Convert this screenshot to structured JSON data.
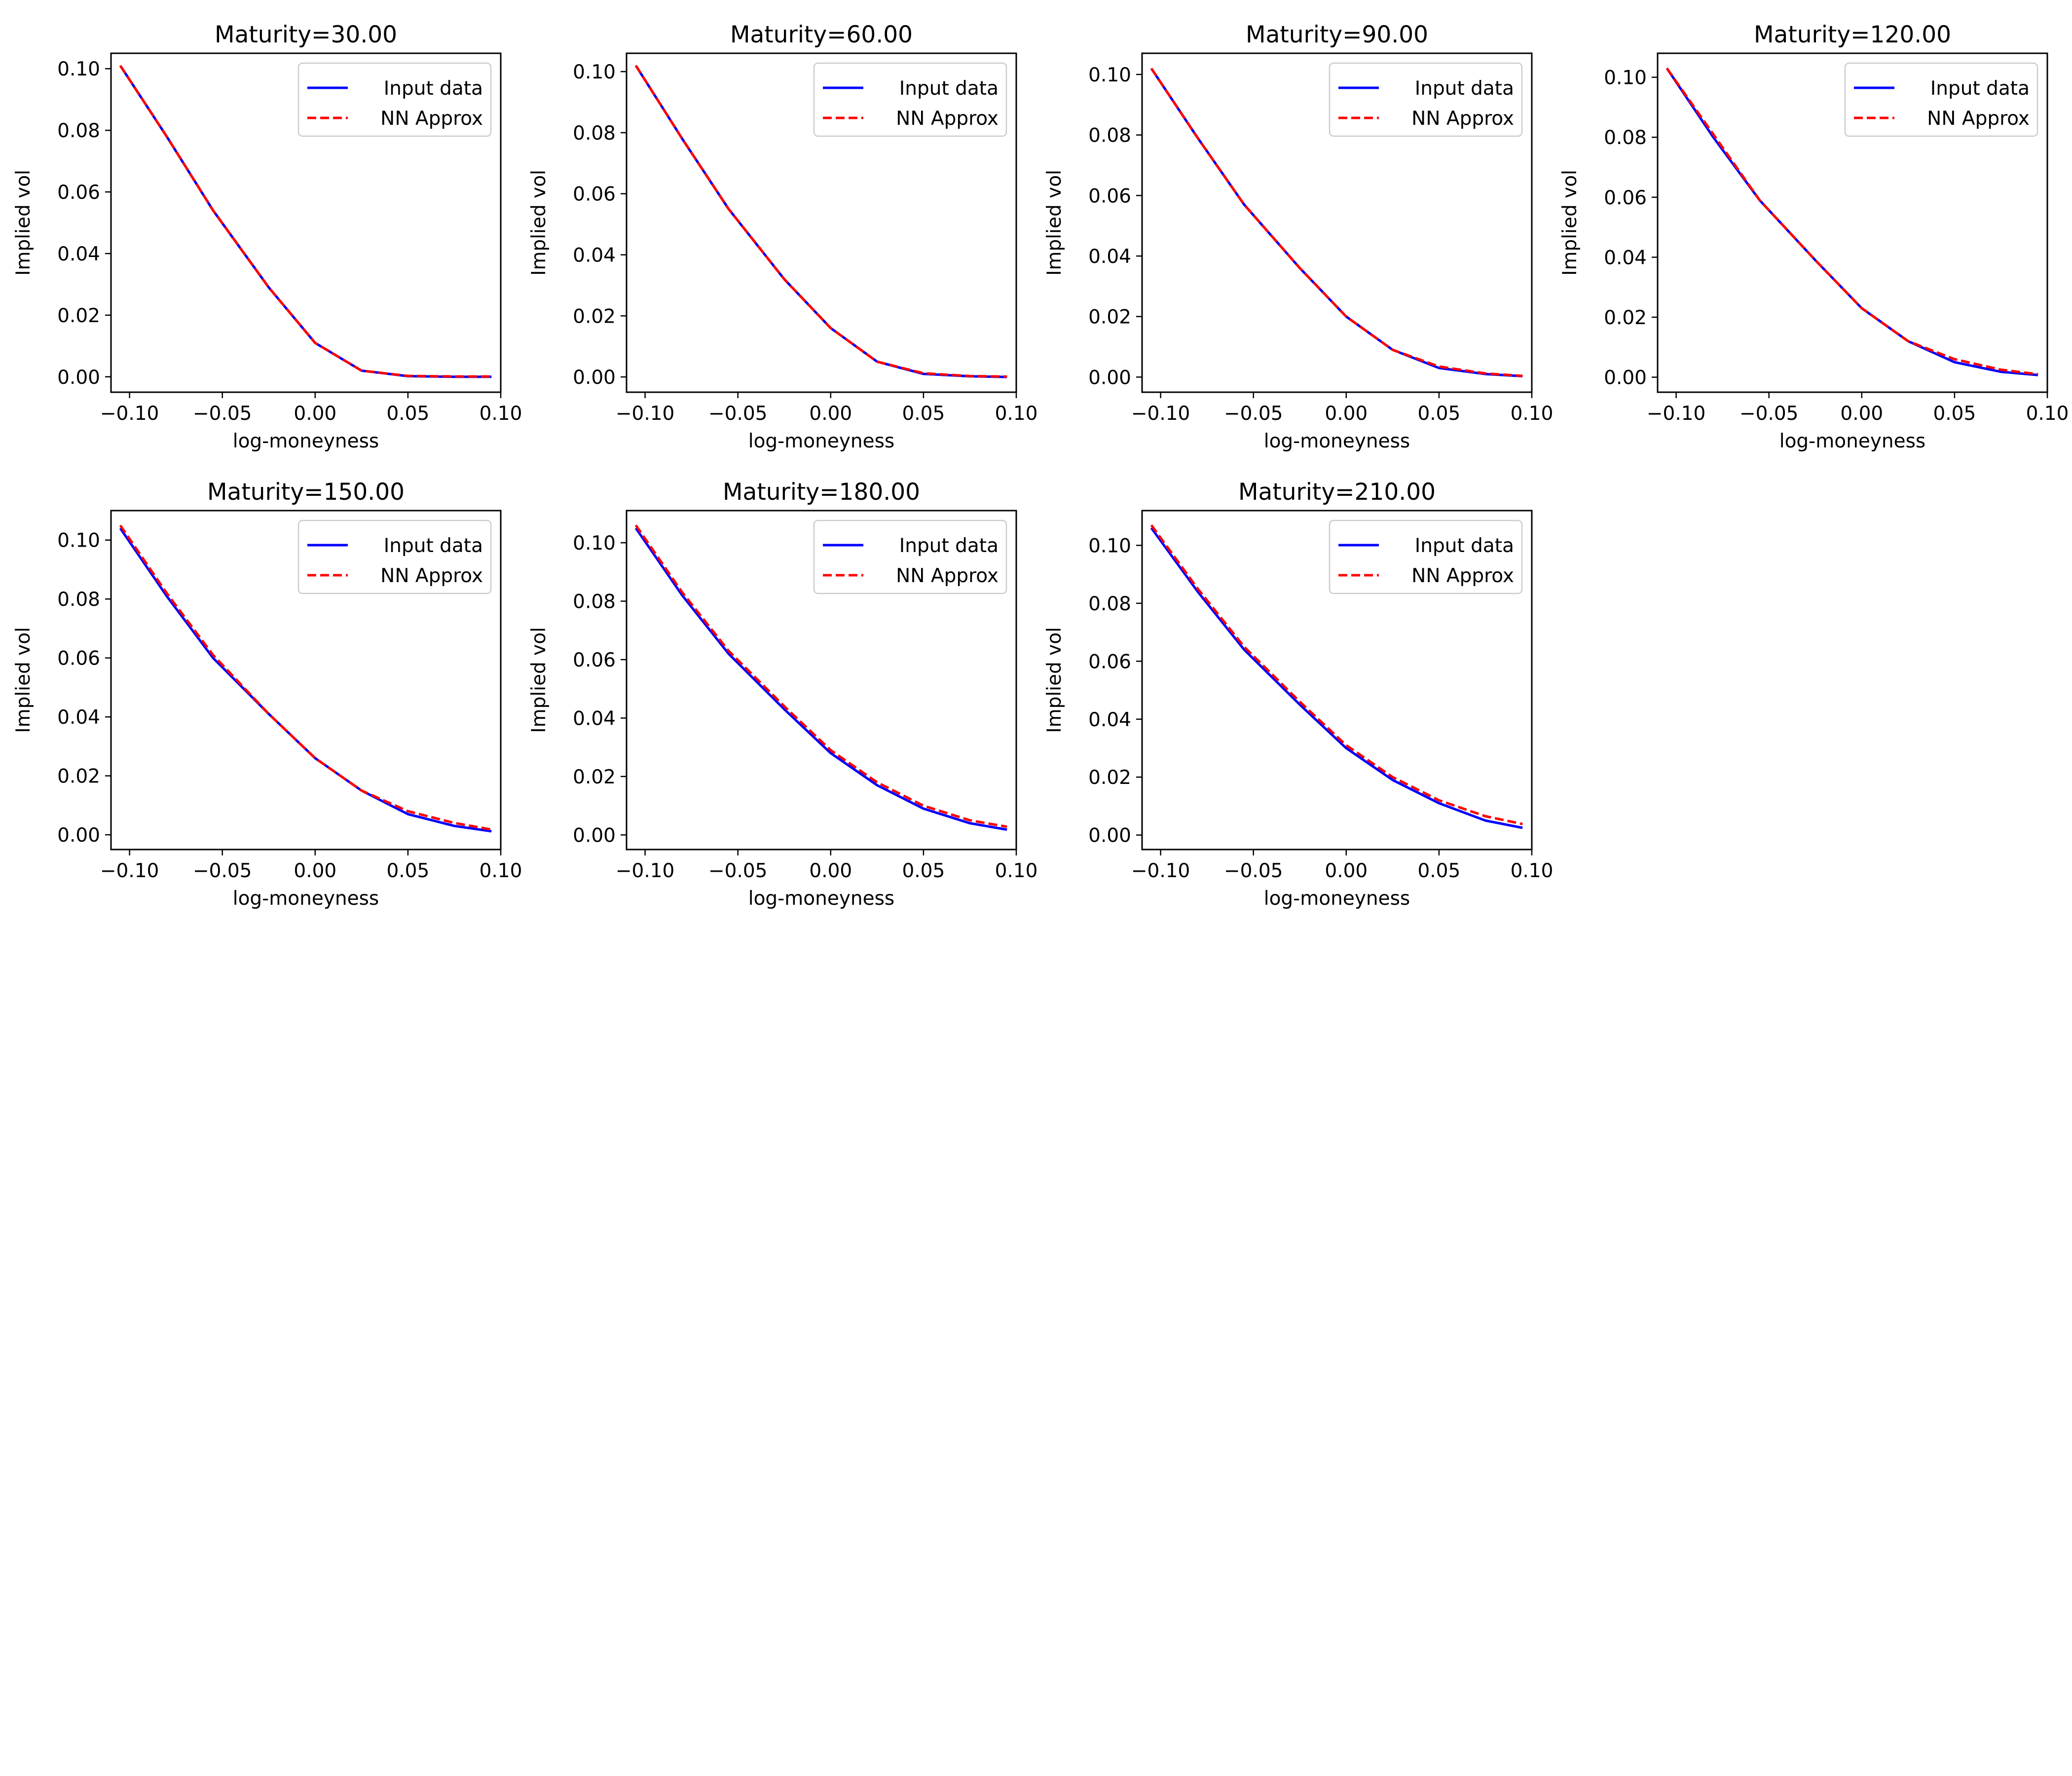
{
  "chart_data": [
    {
      "type": "line",
      "title": "Maturity=30.00",
      "xlabel": "log-moneyness",
      "ylabel": "Implied vol",
      "xlim": [
        -0.11,
        0.1
      ],
      "ylim": [
        -0.005,
        0.105
      ],
      "xticks": [
        "−0.10",
        "−0.05",
        "0.00",
        "0.05",
        "0.10"
      ],
      "yticks": [
        "0.00",
        "0.02",
        "0.04",
        "0.06",
        "0.08",
        "0.10"
      ],
      "legend": "top-right",
      "series": [
        {
          "name": "Input data",
          "color": "#0000ff",
          "style": "solid",
          "x": [
            -0.105,
            -0.08,
            -0.055,
            -0.025,
            0.0,
            0.025,
            0.05,
            0.075,
            0.095
          ],
          "y": [
            0.101,
            0.078,
            0.054,
            0.029,
            0.011,
            0.002,
            0.0002,
            0.0,
            0.0
          ]
        },
        {
          "name": "NN Approx",
          "color": "#ff0000",
          "style": "dashed",
          "x": [
            -0.105,
            -0.08,
            -0.055,
            -0.025,
            0.0,
            0.025,
            0.05,
            0.075,
            0.095
          ],
          "y": [
            0.101,
            0.078,
            0.054,
            0.029,
            0.011,
            0.002,
            0.0003,
            0.0001,
            0.0001
          ]
        }
      ]
    },
    {
      "type": "line",
      "title": "Maturity=60.00",
      "xlabel": "log-moneyness",
      "ylabel": "Implied vol",
      "xlim": [
        -0.11,
        0.1
      ],
      "ylim": [
        -0.005,
        0.106
      ],
      "xticks": [
        "−0.10",
        "−0.05",
        "0.00",
        "0.05",
        "0.10"
      ],
      "yticks": [
        "0.00",
        "0.02",
        "0.04",
        "0.06",
        "0.08",
        "0.10"
      ],
      "legend": "top-right",
      "series": [
        {
          "name": "Input data",
          "color": "#0000ff",
          "style": "solid",
          "x": [
            -0.105,
            -0.08,
            -0.055,
            -0.025,
            0.0,
            0.025,
            0.05,
            0.075,
            0.095
          ],
          "y": [
            0.102,
            0.078,
            0.055,
            0.032,
            0.016,
            0.005,
            0.001,
            0.0002,
            0.0
          ]
        },
        {
          "name": "NN Approx",
          "color": "#ff0000",
          "style": "dashed",
          "x": [
            -0.105,
            -0.08,
            -0.055,
            -0.025,
            0.0,
            0.025,
            0.05,
            0.075,
            0.095
          ],
          "y": [
            0.102,
            0.078,
            0.055,
            0.032,
            0.016,
            0.005,
            0.0012,
            0.0003,
            0.0001
          ]
        }
      ]
    },
    {
      "type": "line",
      "title": "Maturity=90.00",
      "xlabel": "log-moneyness",
      "ylabel": "Implied vol",
      "xlim": [
        -0.11,
        0.1
      ],
      "ylim": [
        -0.005,
        0.107
      ],
      "xticks": [
        "−0.10",
        "−0.05",
        "0.00",
        "0.05",
        "0.10"
      ],
      "yticks": [
        "0.00",
        "0.02",
        "0.04",
        "0.06",
        "0.08",
        "0.10"
      ],
      "legend": "top-right",
      "series": [
        {
          "name": "Input data",
          "color": "#0000ff",
          "style": "solid",
          "x": [
            -0.105,
            -0.08,
            -0.055,
            -0.025,
            0.0,
            0.025,
            0.05,
            0.075,
            0.095
          ],
          "y": [
            0.102,
            0.079,
            0.057,
            0.036,
            0.02,
            0.009,
            0.003,
            0.001,
            0.0003
          ]
        },
        {
          "name": "NN Approx",
          "color": "#ff0000",
          "style": "dashed",
          "x": [
            -0.105,
            -0.08,
            -0.055,
            -0.025,
            0.0,
            0.025,
            0.05,
            0.075,
            0.095
          ],
          "y": [
            0.102,
            0.079,
            0.057,
            0.036,
            0.02,
            0.009,
            0.0035,
            0.0012,
            0.0004
          ]
        }
      ]
    },
    {
      "type": "line",
      "title": "Maturity=120.00",
      "xlabel": "log-moneyness",
      "ylabel": "Implied vol",
      "xlim": [
        -0.11,
        0.1
      ],
      "ylim": [
        -0.005,
        0.108
      ],
      "xticks": [
        "−0.10",
        "−0.05",
        "0.00",
        "0.05",
        "0.10"
      ],
      "yticks": [
        "0.00",
        "0.02",
        "0.04",
        "0.06",
        "0.08",
        "0.10"
      ],
      "legend": "top-right",
      "series": [
        {
          "name": "Input data",
          "color": "#0000ff",
          "style": "solid",
          "x": [
            -0.105,
            -0.08,
            -0.055,
            -0.025,
            0.0,
            0.025,
            0.05,
            0.075,
            0.095
          ],
          "y": [
            0.103,
            0.08,
            0.059,
            0.039,
            0.023,
            0.012,
            0.005,
            0.0018,
            0.0007
          ]
        },
        {
          "name": "NN Approx",
          "color": "#ff0000",
          "style": "dashed",
          "x": [
            -0.105,
            -0.08,
            -0.055,
            -0.025,
            0.0,
            0.025,
            0.05,
            0.075,
            0.095
          ],
          "y": [
            0.103,
            0.081,
            0.059,
            0.039,
            0.023,
            0.012,
            0.006,
            0.0025,
            0.001
          ]
        }
      ]
    },
    {
      "type": "line",
      "title": "Maturity=150.00",
      "xlabel": "log-moneyness",
      "ylabel": "Implied vol",
      "xlim": [
        -0.11,
        0.1
      ],
      "ylim": [
        -0.005,
        0.11
      ],
      "xticks": [
        "−0.10",
        "−0.05",
        "0.00",
        "0.05",
        "0.10"
      ],
      "yticks": [
        "0.00",
        "0.02",
        "0.04",
        "0.06",
        "0.08",
        "0.10"
      ],
      "legend": "top-right",
      "series": [
        {
          "name": "Input data",
          "color": "#0000ff",
          "style": "solid",
          "x": [
            -0.105,
            -0.08,
            -0.055,
            -0.025,
            0.0,
            0.025,
            0.05,
            0.075,
            0.095
          ],
          "y": [
            0.104,
            0.081,
            0.06,
            0.041,
            0.026,
            0.015,
            0.007,
            0.003,
            0.0012
          ]
        },
        {
          "name": "NN Approx",
          "color": "#ff0000",
          "style": "dashed",
          "x": [
            -0.105,
            -0.08,
            -0.055,
            -0.025,
            0.0,
            0.025,
            0.05,
            0.075,
            0.095
          ],
          "y": [
            0.105,
            0.082,
            0.061,
            0.041,
            0.026,
            0.015,
            0.008,
            0.004,
            0.0018
          ]
        }
      ]
    },
    {
      "type": "line",
      "title": "Maturity=180.00",
      "xlabel": "log-moneyness",
      "ylabel": "Implied vol",
      "xlim": [
        -0.11,
        0.1
      ],
      "ylim": [
        -0.005,
        0.111
      ],
      "xticks": [
        "−0.10",
        "−0.05",
        "0.00",
        "0.05",
        "0.10"
      ],
      "yticks": [
        "0.00",
        "0.02",
        "0.04",
        "0.06",
        "0.08",
        "0.10"
      ],
      "legend": "top-right",
      "series": [
        {
          "name": "Input data",
          "color": "#0000ff",
          "style": "solid",
          "x": [
            -0.105,
            -0.08,
            -0.055,
            -0.025,
            0.0,
            0.025,
            0.05,
            0.075,
            0.095
          ],
          "y": [
            0.105,
            0.082,
            0.062,
            0.043,
            0.028,
            0.017,
            0.009,
            0.004,
            0.0018
          ]
        },
        {
          "name": "NN Approx",
          "color": "#ff0000",
          "style": "dashed",
          "x": [
            -0.105,
            -0.08,
            -0.055,
            -0.025,
            0.0,
            0.025,
            0.05,
            0.075,
            0.095
          ],
          "y": [
            0.106,
            0.083,
            0.063,
            0.044,
            0.029,
            0.018,
            0.01,
            0.005,
            0.0028
          ]
        }
      ]
    },
    {
      "type": "line",
      "title": "Maturity=210.00",
      "xlabel": "log-moneyness",
      "ylabel": "Implied vol",
      "xlim": [
        -0.11,
        0.1
      ],
      "ylim": [
        -0.005,
        0.112
      ],
      "xticks": [
        "−0.10",
        "−0.05",
        "0.00",
        "0.05",
        "0.10"
      ],
      "yticks": [
        "0.00",
        "0.02",
        "0.04",
        "0.06",
        "0.08",
        "0.10"
      ],
      "legend": "top-right",
      "series": [
        {
          "name": "Input data",
          "color": "#0000ff",
          "style": "solid",
          "x": [
            -0.105,
            -0.08,
            -0.055,
            -0.025,
            0.0,
            0.025,
            0.05,
            0.075,
            0.095
          ],
          "y": [
            0.106,
            0.084,
            0.064,
            0.045,
            0.03,
            0.019,
            0.011,
            0.005,
            0.0025
          ]
        },
        {
          "name": "NN Approx",
          "color": "#ff0000",
          "style": "dashed",
          "x": [
            -0.105,
            -0.08,
            -0.055,
            -0.025,
            0.0,
            0.025,
            0.05,
            0.075,
            0.095
          ],
          "y": [
            0.107,
            0.085,
            0.065,
            0.046,
            0.031,
            0.02,
            0.012,
            0.0065,
            0.0038
          ]
        }
      ]
    }
  ]
}
